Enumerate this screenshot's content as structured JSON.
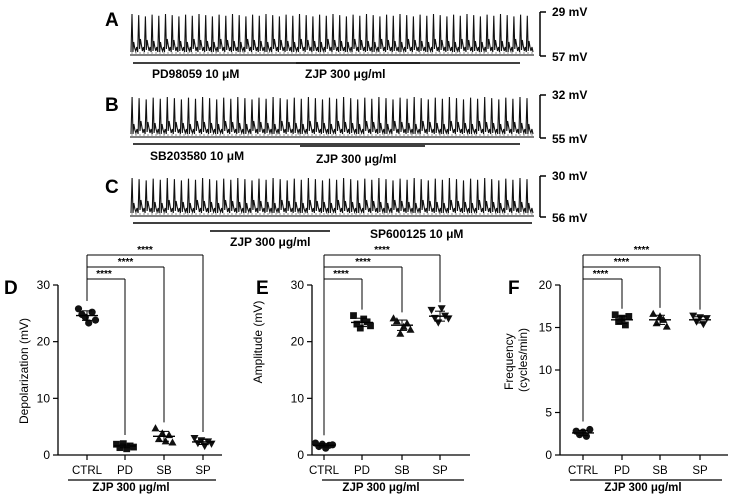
{
  "traces": [
    {
      "letter": "A",
      "top_mv": "29 mV",
      "bottom_mv": "57 mV",
      "bars": [
        {
          "label": "PD98059 10 μM"
        },
        {
          "label": "ZJP 300 μg/ml"
        }
      ]
    },
    {
      "letter": "B",
      "top_mv": "32 mV",
      "bottom_mv": "55 mV",
      "bars": [
        {
          "label": "SB203580 10 μM"
        },
        {
          "label": "ZJP 300 μg/ml"
        }
      ]
    },
    {
      "letter": "C",
      "top_mv": "30 mV",
      "bottom_mv": "56 mV",
      "bars": [
        {
          "label": "ZJP 300 μg/ml"
        },
        {
          "label": "SP600125 10 μM"
        }
      ]
    }
  ],
  "chart_data": [
    {
      "panel": "D",
      "type": "scatter",
      "ylabel": "Depolarization (mV)",
      "ylim": [
        0,
        30
      ],
      "yticks": [
        0,
        10,
        20,
        30
      ],
      "categories": [
        "CTRL",
        "PD",
        "SB",
        "SP"
      ],
      "xcaption": "ZJP 300 μg/ml",
      "means": [
        24.6,
        1.6,
        3.3,
        2.3
      ],
      "points": [
        [
          25.8,
          24.8,
          24.3,
          23.3,
          25.2,
          23.8
        ],
        [
          1.9,
          1.3,
          2.0,
          1.1,
          1.6,
          1.4
        ],
        [
          4.7,
          2.8,
          3.8,
          2.4,
          3.5,
          2.2
        ],
        [
          3.0,
          2.1,
          2.6,
          1.6,
          2.4,
          2.0
        ]
      ],
      "comparisons": [
        {
          "ref": "CTRL",
          "to": "PD",
          "label": "****"
        },
        {
          "ref": "CTRL",
          "to": "SB",
          "label": "****"
        },
        {
          "ref": "CTRL",
          "to": "SP",
          "label": "****"
        }
      ]
    },
    {
      "panel": "E",
      "type": "scatter",
      "ylabel": "Amplitude (mV)",
      "ylim": [
        0,
        30
      ],
      "yticks": [
        0,
        10,
        20,
        30
      ],
      "categories": [
        "CTRL",
        "PD",
        "SB",
        "SP"
      ],
      "xcaption": "ZJP 300 μg/ml",
      "means": [
        1.7,
        23.4,
        22.9,
        24.5
      ],
      "points": [
        [
          2.1,
          1.5,
          1.9,
          1.2,
          1.7,
          1.8
        ],
        [
          24.6,
          23.1,
          22.4,
          24.0,
          23.5,
          22.8
        ],
        [
          24.1,
          23.6,
          21.4,
          22.6,
          23.2,
          22.1
        ],
        [
          25.6,
          24.2,
          23.4,
          25.9,
          24.6,
          24.1
        ]
      ],
      "comparisons": [
        {
          "ref": "CTRL",
          "to": "PD",
          "label": "****"
        },
        {
          "ref": "CTRL",
          "to": "SB",
          "label": "****"
        },
        {
          "ref": "CTRL",
          "to": "SP",
          "label": "****"
        }
      ]
    },
    {
      "panel": "F",
      "type": "scatter",
      "ylabel": "Frequency\n(cycles/min)",
      "ylim": [
        0,
        20
      ],
      "yticks": [
        0,
        5,
        10,
        15,
        20
      ],
      "categories": [
        "CTRL",
        "PD",
        "SB",
        "SP"
      ],
      "xcaption": "ZJP 300 μg/ml",
      "means": [
        2.6,
        15.9,
        15.9,
        15.9
      ],
      "points": [
        [
          2.8,
          2.4,
          2.7,
          2.2,
          3.0
        ],
        [
          16.5,
          15.7,
          16.1,
          15.3,
          16.3
        ],
        [
          16.6,
          15.5,
          16.3,
          15.9,
          15.1
        ],
        [
          16.4,
          15.7,
          16.2,
          15.4,
          16.1
        ]
      ],
      "comparisons": [
        {
          "ref": "CTRL",
          "to": "PD",
          "label": "****"
        },
        {
          "ref": "CTRL",
          "to": "SB",
          "label": "****"
        },
        {
          "ref": "CTRL",
          "to": "SP",
          "label": "****"
        }
      ]
    }
  ]
}
